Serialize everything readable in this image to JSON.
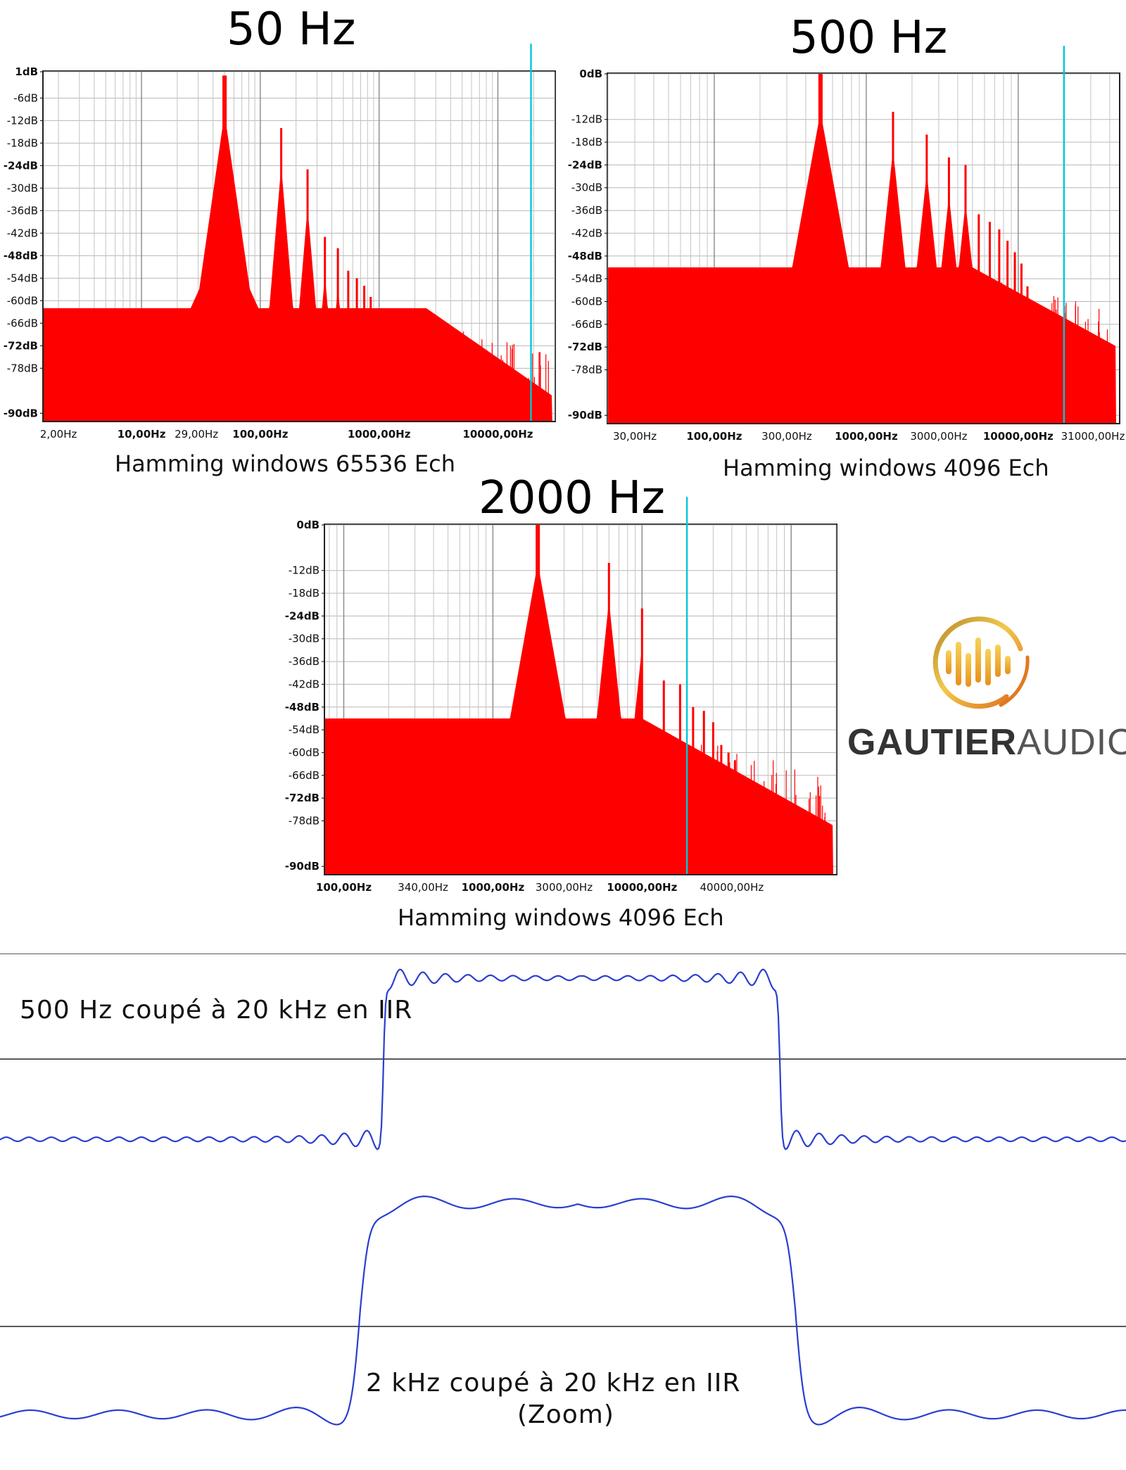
{
  "chart_data": [
    {
      "type": "area",
      "title": "50 Hz",
      "caption": "Hamming windows 65536 Ech",
      "scale_x": "log",
      "xlim": [
        1.5,
        30000
      ],
      "ylim": [
        -92,
        1
      ],
      "y_ticks": [
        "1dB",
        "-6dB",
        "-12dB",
        "-18dB",
        "-24dB",
        "-30dB",
        "-36dB",
        "-42dB",
        "-48dB",
        "-54dB",
        "-60dB",
        "-66dB",
        "-72dB",
        "-78dB",
        "-90dB"
      ],
      "y_tick_values": [
        1,
        -6,
        -12,
        -18,
        -24,
        -30,
        -36,
        -42,
        -48,
        -54,
        -60,
        -66,
        -72,
        -78,
        -90
      ],
      "x_ticks": [
        "2,00Hz",
        "10,00Hz",
        "29,00Hz",
        "100,00Hz",
        "1000,00Hz",
        "10000,00Hz"
      ],
      "x_tick_values": [
        2,
        10,
        29,
        100,
        1000,
        10000
      ],
      "cursor_x": 19000,
      "floor": -62,
      "noise_start": 2500,
      "harmonics": [
        [
          50,
          0
        ],
        [
          150,
          -14
        ],
        [
          250,
          -25
        ],
        [
          350,
          -43
        ],
        [
          450,
          -46
        ],
        [
          550,
          -52
        ],
        [
          650,
          -54
        ],
        [
          750,
          -56
        ],
        [
          850,
          -59
        ],
        [
          950,
          -62
        ],
        [
          1050,
          -64
        ],
        [
          1250,
          -66
        ],
        [
          1450,
          -68
        ],
        [
          1650,
          -70
        ],
        [
          1850,
          -72
        ],
        [
          2050,
          -74
        ]
      ],
      "grid": true,
      "fill_color": "#ff0000",
      "cursor_color": "#00c8d8"
    },
    {
      "type": "area",
      "title": "500 Hz",
      "caption": "Hamming windows 4096 Ech",
      "scale_x": "log",
      "xlim": [
        20,
        46000
      ],
      "ylim": [
        -92,
        0
      ],
      "y_ticks": [
        "0dB",
        "-12dB",
        "-18dB",
        "-24dB",
        "-30dB",
        "-36dB",
        "-42dB",
        "-48dB",
        "-54dB",
        "-60dB",
        "-66dB",
        "-72dB",
        "-78dB",
        "-90dB"
      ],
      "y_tick_values": [
        0,
        -12,
        -18,
        -24,
        -30,
        -36,
        -42,
        -48,
        -54,
        -60,
        -66,
        -72,
        -78,
        -90
      ],
      "x_ticks": [
        "30,00Hz",
        "100,00Hz",
        "300,00Hz",
        "1000,00Hz",
        "3000,00Hz",
        "10000,00Hz",
        "31000,00Hz"
      ],
      "x_tick_values": [
        30,
        100,
        300,
        1000,
        3000,
        10000,
        31000
      ],
      "cursor_x": 20000,
      "floor": -51,
      "noise_start": 5000,
      "harmonics": [
        [
          500,
          0
        ],
        [
          1500,
          -10
        ],
        [
          2500,
          -16
        ],
        [
          3500,
          -22
        ],
        [
          4500,
          -24
        ],
        [
          5500,
          -37
        ],
        [
          6500,
          -39
        ],
        [
          7500,
          -41
        ],
        [
          8500,
          -44
        ],
        [
          9500,
          -47
        ],
        [
          10500,
          -50
        ],
        [
          11500,
          -56
        ],
        [
          13500,
          -62
        ],
        [
          15500,
          -64
        ],
        [
          17500,
          -66
        ],
        [
          19500,
          -68
        ]
      ],
      "grid": true,
      "fill_color": "#ff0000",
      "cursor_color": "#00c8d8"
    },
    {
      "type": "area",
      "title": "2000 Hz",
      "caption": "Hamming windows 4096 Ech",
      "scale_x": "log",
      "xlim": [
        75,
        200000
      ],
      "ylim": [
        -92,
        0
      ],
      "y_ticks": [
        "0dB",
        "-12dB",
        "-18dB",
        "-24dB",
        "-30dB",
        "-36dB",
        "-42dB",
        "-48dB",
        "-54dB",
        "-60dB",
        "-66dB",
        "-72dB",
        "-78dB",
        "-90dB"
      ],
      "y_tick_values": [
        0,
        -12,
        -18,
        -24,
        -30,
        -36,
        -42,
        -48,
        -54,
        -60,
        -66,
        -72,
        -78,
        -90
      ],
      "x_ticks": [
        "100,00Hz",
        "340,00Hz",
        "1000,00Hz",
        "3000,00Hz",
        "10000,00Hz",
        "40000,00Hz"
      ],
      "x_tick_values": [
        100,
        340,
        1000,
        3000,
        10000,
        40000
      ],
      "cursor_x": 20000,
      "floor": -51,
      "noise_start": 10000,
      "harmonics": [
        [
          2000,
          0
        ],
        [
          6000,
          -10
        ],
        [
          10000,
          -22
        ],
        [
          14000,
          -41
        ],
        [
          18000,
          -42
        ],
        [
          22000,
          -48
        ],
        [
          26000,
          -49
        ],
        [
          30000,
          -52
        ],
        [
          34000,
          -58
        ],
        [
          38000,
          -60
        ],
        [
          42000,
          -62
        ]
      ],
      "grid": true,
      "fill_color": "#ff0000",
      "cursor_color": "#00c8d8"
    }
  ],
  "waveforms": [
    {
      "caption": "500 Hz coupé à 20 kHz en IIR",
      "line_color": "#2a3fd0"
    },
    {
      "caption_line1": "2 kHz  coupé à   20 kHz en IIR",
      "caption_line2": "(Zoom)",
      "line_color": "#2a3fd0"
    }
  ],
  "logo": {
    "brand_bold": "GAUTIER",
    "brand_light": "AUDIO",
    "icon": "audio-wave-ring-icon",
    "colors": [
      "#c9a53a",
      "#f0c84a",
      "#e07a20"
    ]
  }
}
